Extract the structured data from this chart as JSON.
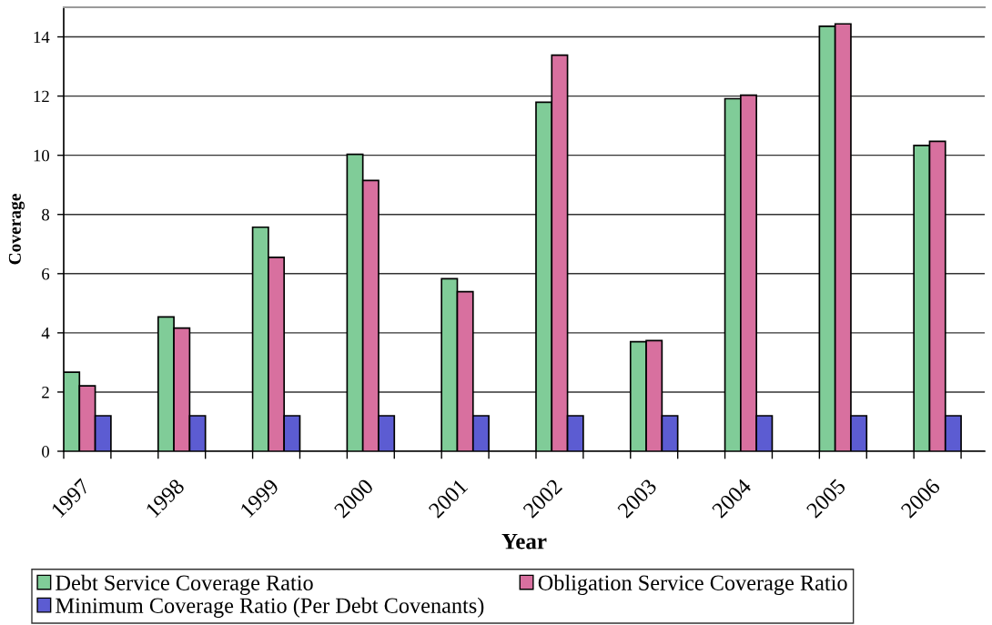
{
  "chart_data": {
    "type": "bar",
    "xlabel": "Year",
    "ylabel": "Coverage",
    "categories": [
      "1997",
      "1998",
      "1999",
      "2000",
      "2001",
      "2002",
      "2003",
      "2004",
      "2005",
      "2006"
    ],
    "series": [
      {
        "name": "Debt Service Coverage Ratio",
        "color": "#80cc98",
        "values": [
          2.67,
          4.54,
          7.57,
          10.03,
          5.83,
          11.79,
          3.7,
          11.91,
          14.36,
          10.33
        ]
      },
      {
        "name": "Obligation Service Coverage Ratio",
        "color": "#d8709f",
        "values": [
          2.21,
          4.16,
          6.55,
          9.15,
          5.39,
          13.38,
          3.74,
          12.03,
          14.44,
          10.47
        ]
      },
      {
        "name": "Minimum Coverage Ratio (Per Debt Covenants)",
        "color": "#5c5cd2",
        "values": [
          1.2,
          1.2,
          1.2,
          1.2,
          1.2,
          1.2,
          1.2,
          1.2,
          1.2,
          1.2
        ]
      }
    ],
    "ylim": [
      0,
      15
    ],
    "yticks": [
      0,
      2,
      4,
      6,
      8,
      10,
      12,
      14
    ],
    "grid": "y",
    "legend": "bottom"
  }
}
